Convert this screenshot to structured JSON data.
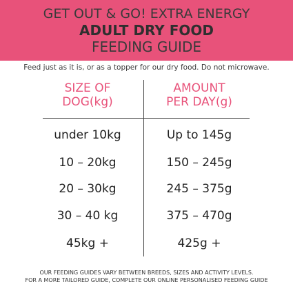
{
  "banner": {
    "line1": "GET OUT & GO! EXTRA ENERGY",
    "line2": "ADULT DRY FOOD",
    "line3": "FEEDING GUIDE"
  },
  "intro": "Feed just as it is, or as a topper for our dry food. Do not microwave.",
  "table": {
    "header_size_line1": "SIZE OF",
    "header_size_line2": "DOG(kg)",
    "header_amount_line1": "AMOUNT",
    "header_amount_line2": "PER DAY(g)",
    "rows": [
      {
        "size": "under 10kg",
        "amount": "Up to 145g"
      },
      {
        "size": "10 – 20kg",
        "amount": "150 – 245g"
      },
      {
        "size": "20 – 30kg",
        "amount": "245 – 375g"
      },
      {
        "size": "30 – 40 kg",
        "amount": "375 – 470g"
      },
      {
        "size": "45kg +",
        "amount": "425g +"
      }
    ]
  },
  "footer": {
    "line1": "OUR FEEDING GUIDES VARY BETWEEN BREEDS, SIZES AND ACTIVITY LEVELS.",
    "line2": "FOR A MORE TAILORED GUIDE, COMPLETE OUR ONLINE PERSONALISED FEEDING GUIDE"
  },
  "colors": {
    "accent": "#e8527a",
    "text": "#222222"
  }
}
